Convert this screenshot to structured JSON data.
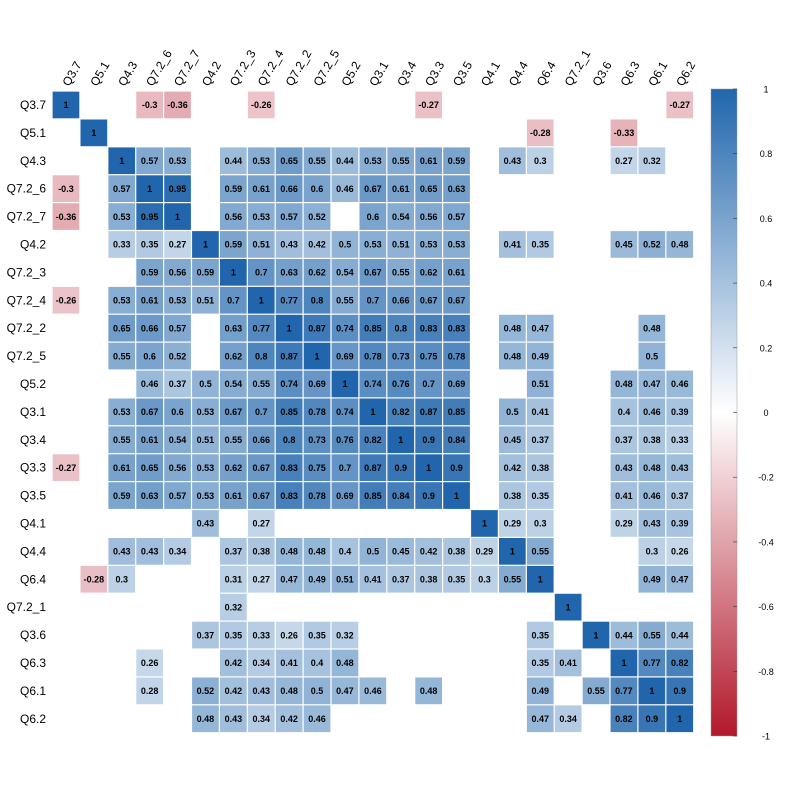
{
  "chart_data": {
    "type": "heatmap",
    "labels": [
      "Q3.7",
      "Q5.1",
      "Q4.3",
      "Q7.2_6",
      "Q7.2_7",
      "Q4.2",
      "Q7.2_3",
      "Q7.2_4",
      "Q7.2_2",
      "Q7.2_5",
      "Q5.2",
      "Q3.1",
      "Q3.4",
      "Q3.3",
      "Q3.5",
      "Q4.1",
      "Q4.4",
      "Q6.4",
      "Q7.2_1",
      "Q3.6",
      "Q6.3",
      "Q6.1",
      "Q6.2"
    ],
    "matrix": [
      [
        1,
        null,
        null,
        -0.3,
        -0.36,
        null,
        null,
        -0.26,
        null,
        null,
        null,
        null,
        null,
        -0.27,
        null,
        null,
        null,
        null,
        null,
        null,
        null,
        null,
        -0.27
      ],
      [
        null,
        1,
        null,
        null,
        null,
        null,
        null,
        null,
        null,
        null,
        null,
        null,
        null,
        null,
        null,
        null,
        null,
        -0.28,
        null,
        null,
        -0.33,
        null,
        null
      ],
      [
        null,
        null,
        1,
        0.57,
        0.53,
        null,
        0.44,
        0.53,
        0.65,
        0.55,
        0.44,
        0.53,
        0.55,
        0.61,
        0.59,
        null,
        0.43,
        0.3,
        null,
        null,
        0.27,
        0.32,
        null
      ],
      [
        -0.3,
        null,
        0.57,
        1,
        0.95,
        null,
        0.59,
        0.61,
        0.66,
        0.6,
        0.46,
        0.67,
        0.61,
        0.65,
        0.63,
        null,
        null,
        null,
        null,
        null,
        null,
        null,
        null
      ],
      [
        -0.36,
        null,
        0.53,
        0.95,
        1,
        null,
        0.56,
        0.53,
        0.57,
        0.52,
        null,
        0.6,
        0.54,
        0.56,
        0.57,
        null,
        null,
        null,
        null,
        null,
        null,
        null,
        null
      ],
      [
        null,
        null,
        0.33,
        0.35,
        0.27,
        1,
        0.59,
        0.51,
        0.43,
        0.42,
        0.5,
        0.53,
        0.51,
        0.53,
        0.53,
        null,
        0.41,
        0.35,
        null,
        null,
        0.45,
        0.52,
        0.48
      ],
      [
        null,
        null,
        null,
        0.59,
        0.56,
        0.59,
        1,
        0.7,
        0.63,
        0.62,
        0.54,
        0.67,
        0.55,
        0.62,
        0.61,
        null,
        null,
        null,
        null,
        null,
        null,
        null,
        null
      ],
      [
        -0.26,
        null,
        0.53,
        0.61,
        0.53,
        0.51,
        0.7,
        1,
        0.77,
        0.8,
        0.55,
        0.7,
        0.66,
        0.67,
        0.67,
        null,
        null,
        null,
        null,
        null,
        null,
        null,
        null
      ],
      [
        null,
        null,
        0.65,
        0.66,
        0.57,
        null,
        0.63,
        0.77,
        1,
        0.87,
        0.74,
        0.85,
        0.8,
        0.83,
        0.83,
        null,
        0.48,
        0.47,
        null,
        null,
        null,
        0.48,
        null
      ],
      [
        null,
        null,
        0.55,
        0.6,
        0.52,
        null,
        0.62,
        0.8,
        0.87,
        1,
        0.69,
        0.78,
        0.73,
        0.75,
        0.78,
        null,
        0.48,
        0.49,
        null,
        null,
        null,
        0.5,
        null
      ],
      [
        null,
        null,
        null,
        0.46,
        0.37,
        0.5,
        0.54,
        0.55,
        0.74,
        0.69,
        1,
        0.74,
        0.76,
        0.7,
        0.69,
        null,
        null,
        0.51,
        null,
        null,
        0.48,
        0.47,
        0.46
      ],
      [
        null,
        null,
        0.53,
        0.67,
        0.6,
        0.53,
        0.67,
        0.7,
        0.85,
        0.78,
        0.74,
        1,
        0.82,
        0.87,
        0.85,
        null,
        0.5,
        0.41,
        null,
        null,
        0.4,
        0.46,
        0.39
      ],
      [
        null,
        null,
        0.55,
        0.61,
        0.54,
        0.51,
        0.55,
        0.66,
        0.8,
        0.73,
        0.76,
        0.82,
        1,
        0.9,
        0.84,
        null,
        0.45,
        0.37,
        null,
        null,
        0.37,
        0.38,
        0.33
      ],
      [
        -0.27,
        null,
        0.61,
        0.65,
        0.56,
        0.53,
        0.62,
        0.67,
        0.83,
        0.75,
        0.7,
        0.87,
        0.9,
        1,
        0.9,
        null,
        0.42,
        0.38,
        null,
        null,
        0.43,
        0.48,
        0.43
      ],
      [
        null,
        null,
        0.59,
        0.63,
        0.57,
        0.53,
        0.61,
        0.67,
        0.83,
        0.78,
        0.69,
        0.85,
        0.84,
        0.9,
        1,
        null,
        0.38,
        0.35,
        null,
        null,
        0.41,
        0.46,
        0.37
      ],
      [
        null,
        null,
        null,
        null,
        null,
        0.43,
        null,
        0.27,
        null,
        null,
        null,
        null,
        null,
        null,
        null,
        1,
        0.29,
        0.3,
        null,
        null,
        0.29,
        0.43,
        0.39
      ],
      [
        null,
        null,
        0.43,
        0.43,
        0.34,
        null,
        0.37,
        0.38,
        0.48,
        0.48,
        0.4,
        0.5,
        0.45,
        0.42,
        0.38,
        0.29,
        1,
        0.55,
        null,
        null,
        null,
        0.3,
        0.26
      ],
      [
        null,
        -0.28,
        0.3,
        null,
        null,
        null,
        0.31,
        0.27,
        0.47,
        0.49,
        0.51,
        0.41,
        0.37,
        0.38,
        0.35,
        0.3,
        0.55,
        1,
        null,
        null,
        null,
        0.49,
        0.47
      ],
      [
        null,
        null,
        null,
        null,
        null,
        null,
        0.32,
        null,
        null,
        null,
        null,
        null,
        null,
        null,
        null,
        null,
        null,
        null,
        1,
        null,
        null,
        null,
        null
      ],
      [
        null,
        null,
        null,
        null,
        null,
        0.37,
        0.35,
        0.33,
        0.26,
        0.35,
        0.32,
        null,
        null,
        null,
        null,
        null,
        null,
        0.35,
        null,
        1,
        0.44,
        0.55,
        0.44
      ],
      [
        null,
        null,
        null,
        0.26,
        null,
        null,
        0.42,
        0.34,
        0.41,
        0.4,
        0.48,
        null,
        null,
        null,
        null,
        null,
        null,
        0.35,
        0.41,
        null,
        1,
        0.77,
        0.82
      ],
      [
        null,
        null,
        null,
        0.28,
        null,
        0.52,
        0.42,
        0.43,
        0.48,
        0.5,
        0.47,
        0.46,
        null,
        0.48,
        null,
        null,
        null,
        0.49,
        null,
        0.55,
        0.77,
        1,
        0.9
      ],
      [
        null,
        null,
        null,
        null,
        null,
        0.48,
        0.43,
        0.34,
        0.42,
        0.46,
        null,
        null,
        null,
        null,
        null,
        null,
        null,
        0.47,
        0.34,
        null,
        0.82,
        0.9,
        1
      ]
    ],
    "colorbar": {
      "min": -1,
      "max": 1,
      "ticks": [
        "1",
        "0.8",
        "0.6",
        "0.4",
        "0.2",
        "0",
        "-0.2",
        "-0.4",
        "-0.6",
        "-0.8",
        "-1"
      ],
      "tick_values": [
        1,
        0.8,
        0.6,
        0.4,
        0.2,
        0,
        -0.2,
        -0.4,
        -0.6,
        -0.8,
        -1
      ],
      "colors": {
        "negative": "#b2182b",
        "neutral": "#ffffff",
        "positive": "#2166ac"
      }
    },
    "grid": false
  }
}
